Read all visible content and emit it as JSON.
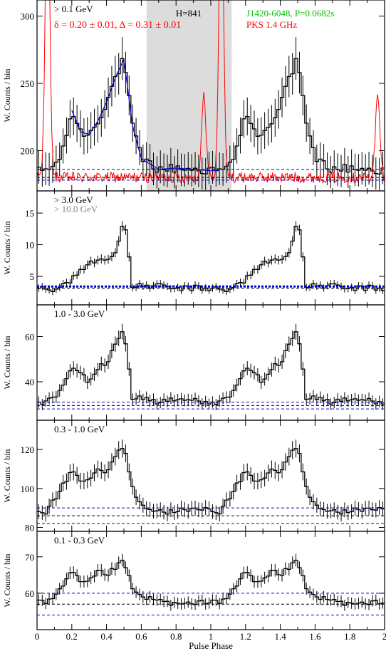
{
  "figure": {
    "xlabel": "Pulse Phase",
    "x_range": [
      0,
      2
    ],
    "x_ticks": [
      "0",
      "0.2",
      "0.4",
      "0.6",
      "0.8",
      "1",
      "1.2",
      "1.4",
      "1.6",
      "1.8",
      "2"
    ]
  },
  "colors": {
    "histogram": "#000000",
    "radio": "#ff0000",
    "fit": "#0000cc",
    "source_name": "#00c000",
    "band_label_secondary": "#888888",
    "offpulse_band": "#dcdcdc"
  },
  "chart_data": [
    {
      "type": "histogram",
      "band": "> 0.1 GeV",
      "ylabel": "W. Counts / bin",
      "ylim": [
        170,
        312
      ],
      "yticks": [
        "200",
        "250",
        "300"
      ],
      "annotations": {
        "h_test": "H=841",
        "source": "J1420-6048, P=0.0682s",
        "fit_params": "δ = 0.20 ± 0.01, Δ = 0.31 ± 0.01",
        "radio_label": "PKS 1.4 GHz"
      },
      "offpulse_interval": [
        0.63,
        1.12
      ],
      "profile_key_phases": [
        0,
        0.05,
        0.1,
        0.15,
        0.2,
        0.25,
        0.3,
        0.35,
        0.4,
        0.45,
        0.5,
        0.55,
        0.6,
        0.7,
        0.8,
        0.9,
        1.0
      ],
      "profile_key_values": [
        184,
        186,
        188,
        200,
        230,
        214,
        212,
        222,
        236,
        254,
        268,
        218,
        194,
        186,
        187,
        186,
        185
      ],
      "background_levels": [
        186,
        180,
        178
      ],
      "radio_profile": {
        "baseline": 180,
        "peaks": [
          {
            "phase": 0.06,
            "amplitude": 115
          },
          {
            "phase": 0.96,
            "amplitude": 60
          },
          {
            "phase": 1.06,
            "amplitude": 115
          }
        ]
      },
      "fit_curve": true
    },
    {
      "type": "histogram",
      "band": "> 3.0 GeV",
      "band_secondary": "> 10.0 GeV",
      "ylabel": "W. Counts / bin",
      "ylim": [
        0.5,
        18.5
      ],
      "yticks": [
        "5",
        "10",
        "15"
      ],
      "profile_key_phases": [
        0,
        0.05,
        0.1,
        0.15,
        0.2,
        0.25,
        0.3,
        0.35,
        0.4,
        0.45,
        0.5,
        0.55,
        0.6,
        0.7,
        0.8,
        0.9,
        1.0
      ],
      "profile_key_values": [
        3.0,
        3.2,
        3.0,
        3.5,
        4.5,
        6.0,
        7.0,
        7.5,
        8.0,
        8.5,
        14.0,
        3.5,
        3.5,
        3.5,
        3.0,
        3.2,
        3.0
      ],
      "background_levels": [
        3.4,
        3.1
      ],
      "background_style": "dotted_thick"
    },
    {
      "type": "histogram",
      "band": "1.0 - 3.0 GeV",
      "ylabel": "W. Counts / bin",
      "ylim": [
        23,
        74
      ],
      "yticks": [
        "40",
        "60"
      ],
      "profile_key_phases": [
        0,
        0.05,
        0.1,
        0.15,
        0.2,
        0.25,
        0.3,
        0.35,
        0.4,
        0.45,
        0.5,
        0.55,
        0.6,
        0.7,
        0.8,
        0.9,
        1.0
      ],
      "profile_key_values": [
        31,
        31,
        33,
        38,
        46,
        44,
        40,
        46,
        48,
        56,
        64,
        33,
        33,
        31,
        32,
        32,
        31
      ],
      "background_levels": [
        31,
        29.5,
        28
      ]
    },
    {
      "type": "histogram",
      "band": "0.3 - 1.0 GeV",
      "ylabel": "W. Counts / bin",
      "ylim": [
        78,
        135
      ],
      "yticks": [
        "80",
        "100",
        "120"
      ],
      "profile_key_phases": [
        0,
        0.05,
        0.1,
        0.15,
        0.2,
        0.25,
        0.3,
        0.35,
        0.4,
        0.45,
        0.5,
        0.55,
        0.6,
        0.7,
        0.8,
        0.9,
        1.0
      ],
      "profile_key_values": [
        89,
        88,
        94,
        102,
        108,
        104,
        103,
        110,
        108,
        116,
        122,
        100,
        92,
        88,
        88,
        90,
        89
      ],
      "background_levels": [
        90,
        86,
        82
      ]
    },
    {
      "type": "histogram",
      "band": "0.1 - 0.3 GeV",
      "ylabel": "W. Counts / bin",
      "ylim": [
        50,
        77
      ],
      "yticks": [
        "60",
        "70"
      ],
      "profile_key_phases": [
        0,
        0.05,
        0.1,
        0.15,
        0.2,
        0.25,
        0.3,
        0.35,
        0.4,
        0.45,
        0.5,
        0.55,
        0.6,
        0.7,
        0.8,
        0.9,
        1.0
      ],
      "profile_key_values": [
        58,
        57,
        59,
        62,
        66,
        63,
        63,
        66,
        65,
        67,
        69,
        61,
        59,
        58,
        57,
        57,
        58
      ],
      "background_levels": [
        60,
        57,
        54
      ]
    }
  ]
}
